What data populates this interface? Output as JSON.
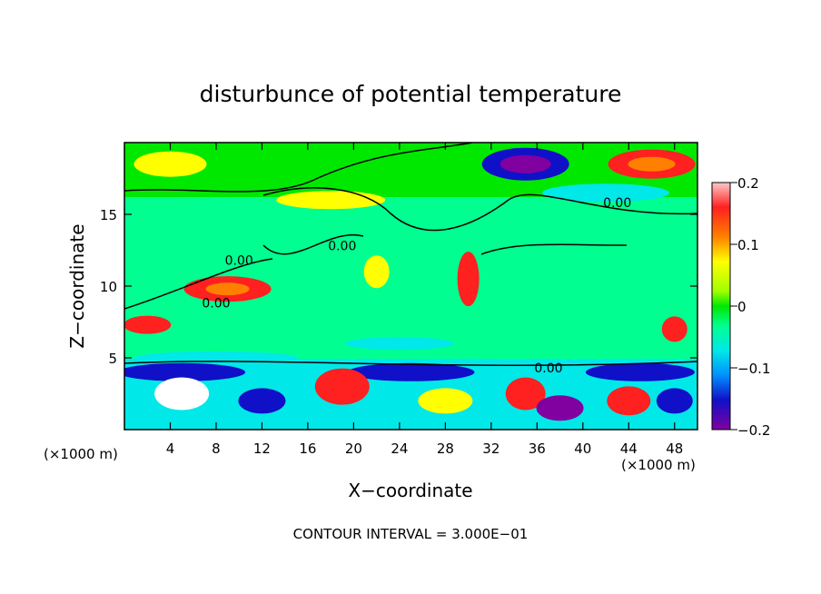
{
  "chart_data": {
    "type": "heatmap",
    "title": "disturbunce of potential temperature",
    "xlabel": "X−coordinate",
    "ylabel": "Z−coordinate",
    "x_unit_label": "(×1000 m)",
    "x_unit_label_right": "(×1000 m)",
    "xlim": [
      0,
      50
    ],
    "ylim": [
      0,
      20
    ],
    "x_ticks": [
      4,
      8,
      12,
      16,
      20,
      24,
      28,
      32,
      36,
      40,
      44,
      48
    ],
    "y_ticks": [
      5,
      10,
      15
    ],
    "colorbar": {
      "range": [
        -0.2,
        0.2
      ],
      "tick_labels": [
        "0.2",
        "0.1",
        "0",
        "−0.1",
        "−0.2"
      ],
      "tick_values": [
        0.2,
        0.1,
        0,
        -0.1,
        -0.2
      ]
    },
    "contour_labels": [
      {
        "text": "0.00",
        "x": 10,
        "y": 11.5
      },
      {
        "text": "0.00",
        "x": 8,
        "y": 8.5
      },
      {
        "text": "0.00",
        "x": 19,
        "y": 12.5
      },
      {
        "text": "0.00",
        "x": 43,
        "y": 15.5
      },
      {
        "text": "0.00",
        "x": 37,
        "y": 4
      }
    ],
    "footer": "CONTOUR INTERVAL = 3.000E−01",
    "colors": {
      "high": "#ff2020",
      "mid_warm": "#ffff00",
      "zero": "#00e800",
      "mid_cool": "#00e8e8",
      "low": "#1010c8",
      "extreme_high": "#ffffff",
      "extreme_low": "#8000a0"
    }
  }
}
